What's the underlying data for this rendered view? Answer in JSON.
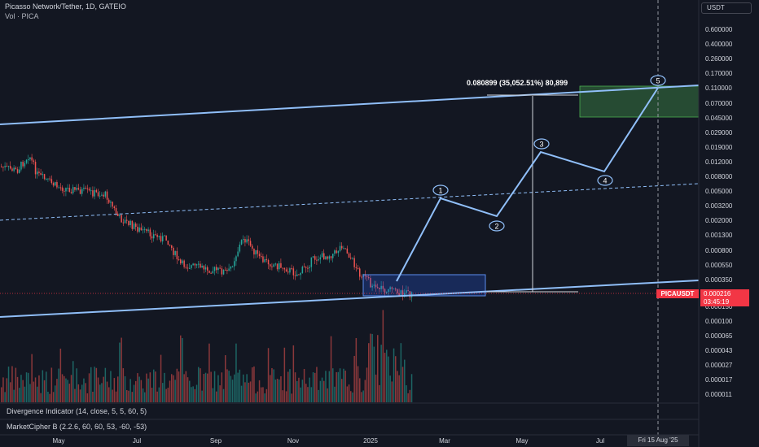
{
  "header": {
    "title": "Picasso Network/Tether, 1D, GATEIO",
    "volume_label": "Vol · PICA"
  },
  "currency_button": "USDT",
  "y_axis_ticks": [
    "0.600000",
    "0.400000",
    "0.260000",
    "0.170000",
    "0.110000",
    "0.070000",
    "0.045000",
    "0.029000",
    "0.019000",
    "0.012000",
    "0.008000",
    "0.005000",
    "0.003200",
    "0.002000",
    "0.001300",
    "0.000800",
    "0.000550",
    "0.000350",
    "0.000150",
    "0.000100",
    "0.000065",
    "0.000043",
    "0.000027",
    "0.000017",
    "0.000011"
  ],
  "x_axis_ticks": [
    "May",
    "Jul",
    "Sep",
    "Nov",
    "2025",
    "Mar",
    "May",
    "Jul"
  ],
  "crosshair_date": "Fri 15 Aug '25",
  "price_tag": {
    "symbol": "PICAUSDT",
    "price": "0.000216",
    "countdown": "03:45:19"
  },
  "measure_label": "0.080899 (35,052.51%) 80,899",
  "wave_labels": [
    "1",
    "2",
    "3",
    "4",
    "5"
  ],
  "indicators": {
    "divergence": "Divergence Indicator (14, close, 5, 5, 60, 5)",
    "marketcipher": "MarketCipher B (2.2.6, 60, 60, 53, -60, -53)"
  },
  "colors": {
    "background": "#131722",
    "up_candle": "#26a69a",
    "down_candle": "#ef5350",
    "channel_line": "#90bff9",
    "price_tag": "#f23645",
    "target_box": "#2e5e3a",
    "range_box": "#2962ff"
  }
}
